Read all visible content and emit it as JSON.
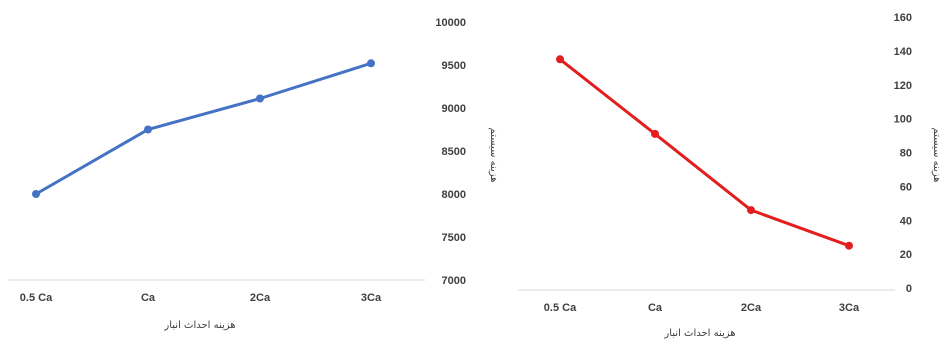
{
  "chart_data": [
    {
      "type": "line",
      "categories": [
        "0.5 Ca",
        "Ca",
        "2Ca",
        "3Ca"
      ],
      "series": [
        {
          "values": [
            8000,
            8750,
            9110,
            9520
          ],
          "color": "#4472c4"
        }
      ],
      "xlabel": "هزینه احداث انبار",
      "ylabel": "هزینه سیستم",
      "ylim": [
        7000,
        10000
      ],
      "yticks": [
        7000,
        7500,
        8000,
        8500,
        9000,
        9500,
        10000
      ],
      "y_axis_side": "right",
      "grid": false
    },
    {
      "type": "line",
      "categories": [
        "0.5 Ca",
        "Ca",
        "2Ca",
        "3Ca"
      ],
      "series": [
        {
          "values": [
            135,
            91,
            46,
            25
          ],
          "color": "#e31e1e"
        }
      ],
      "xlabel": "هزینه احداث انبار",
      "ylabel": "هزینه سیستم",
      "ylim": [
        0,
        160
      ],
      "yticks": [
        0,
        20,
        40,
        60,
        80,
        100,
        120,
        140,
        160
      ],
      "y_axis_side": "right",
      "grid": false
    }
  ]
}
